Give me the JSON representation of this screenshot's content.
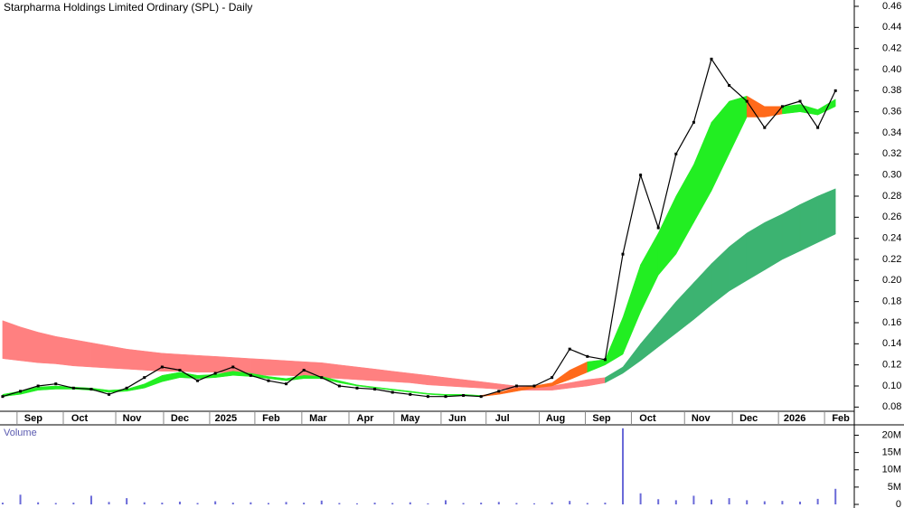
{
  "chart_data": [
    {
      "type": "line",
      "title": "Starpharma Holdings Limited Ordinary (SPL) - Daily",
      "xlim": [
        -0.15,
        48.06
      ],
      "xticks": [
        {
          "value": 1.73,
          "label": "Sep"
        },
        {
          "value": 4.34,
          "label": "Oct"
        },
        {
          "value": 7.3,
          "label": "Nov"
        },
        {
          "value": 10.0,
          "label": "Dec"
        },
        {
          "value": 12.6,
          "label": "2025"
        },
        {
          "value": 15.15,
          "label": "Feb"
        },
        {
          "value": 17.8,
          "label": "Mar"
        },
        {
          "value": 20.46,
          "label": "Apr"
        },
        {
          "value": 23.0,
          "label": "May"
        },
        {
          "value": 25.66,
          "label": "Jun"
        },
        {
          "value": 28.2,
          "label": "Jul"
        },
        {
          "value": 31.2,
          "label": "Aug"
        },
        {
          "value": 33.8,
          "label": "Sep"
        },
        {
          "value": 36.4,
          "label": "Oct"
        },
        {
          "value": 39.4,
          "label": "Nov"
        },
        {
          "value": 42.1,
          "label": "Dec"
        },
        {
          "value": 44.7,
          "label": "2026"
        },
        {
          "value": 47.3,
          "label": "Feb"
        }
      ],
      "ylim": [
        0.076,
        0.466
      ],
      "yticks": [
        0.08,
        {
          "value": 0.1,
          "label": "0.10"
        },
        0.12,
        0.14,
        0.16,
        0.18,
        {
          "value": 0.2,
          "label": "0.20"
        },
        0.22,
        0.24,
        0.26,
        0.28,
        {
          "value": 0.3,
          "label": "0.30"
        },
        0.32,
        0.34,
        0.36,
        0.38,
        {
          "value": 0.4,
          "label": "0.40"
        },
        0.42,
        0.44,
        0.46
      ],
      "ribbons": [
        {
          "color": "#ff8080",
          "x": [
            0,
            1,
            2,
            3,
            4,
            5,
            6,
            7,
            8,
            9,
            10,
            11,
            12,
            13,
            14,
            15,
            16,
            17,
            18,
            19,
            20,
            21,
            22,
            23,
            24,
            25,
            26,
            27,
            28,
            29,
            30,
            31,
            32,
            33,
            34
          ],
          "upper": [
            0.162,
            0.156,
            0.151,
            0.147,
            0.144,
            0.141,
            0.138,
            0.135,
            0.133,
            0.131,
            0.13,
            0.129,
            0.128,
            0.127,
            0.126,
            0.125,
            0.124,
            0.123,
            0.122,
            0.12,
            0.118,
            0.116,
            0.114,
            0.112,
            0.11,
            0.108,
            0.106,
            0.104,
            0.102,
            0.1,
            0.099,
            0.1,
            0.103,
            0.106,
            0.108
          ],
          "lower": [
            0.126,
            0.124,
            0.122,
            0.121,
            0.119,
            0.118,
            0.117,
            0.116,
            0.115,
            0.114,
            0.114,
            0.113,
            0.113,
            0.112,
            0.111,
            0.11,
            0.11,
            0.109,
            0.108,
            0.107,
            0.106,
            0.105,
            0.104,
            0.103,
            0.101,
            0.1,
            0.099,
            0.098,
            0.097,
            0.096,
            0.096,
            0.096,
            0.098,
            0.1,
            0.103
          ]
        },
        {
          "color": "#3cb371",
          "x": [
            34,
            35,
            36,
            37,
            38,
            39,
            40,
            41,
            42,
            43,
            44,
            45,
            46,
            47
          ],
          "upper": [
            0.108,
            0.118,
            0.14,
            0.16,
            0.18,
            0.198,
            0.216,
            0.232,
            0.245,
            0.255,
            0.263,
            0.272,
            0.28,
            0.287
          ],
          "lower": [
            0.103,
            0.112,
            0.124,
            0.137,
            0.15,
            0.163,
            0.177,
            0.19,
            0.2,
            0.21,
            0.22,
            0.228,
            0.236,
            0.244
          ]
        },
        {
          "color": "#22ee22",
          "x": [
            0,
            1,
            2,
            3,
            4,
            5,
            6,
            7,
            8,
            9,
            10,
            11,
            12,
            13,
            14,
            15,
            16,
            17,
            18,
            19,
            20,
            21,
            22,
            23,
            24,
            25,
            26,
            27
          ],
          "upper": [
            0.092,
            0.095,
            0.099,
            0.1,
            0.099,
            0.098,
            0.096,
            0.097,
            0.102,
            0.11,
            0.113,
            0.11,
            0.111,
            0.114,
            0.112,
            0.109,
            0.107,
            0.11,
            0.109,
            0.105,
            0.101,
            0.099,
            0.097,
            0.095,
            0.093,
            0.092,
            0.092,
            0.091
          ],
          "lower": [
            0.09,
            0.092,
            0.096,
            0.097,
            0.097,
            0.096,
            0.094,
            0.095,
            0.098,
            0.104,
            0.108,
            0.107,
            0.108,
            0.11,
            0.109,
            0.107,
            0.105,
            0.107,
            0.107,
            0.103,
            0.1,
            0.098,
            0.096,
            0.094,
            0.092,
            0.091,
            0.091,
            0.09
          ]
        },
        {
          "color": "#ff6a1a",
          "x": [
            27,
            28,
            29,
            30,
            31,
            32,
            33
          ],
          "upper": [
            0.091,
            0.094,
            0.098,
            0.1,
            0.103,
            0.115,
            0.123
          ],
          "lower": [
            0.09,
            0.092,
            0.095,
            0.098,
            0.1,
            0.106,
            0.113
          ]
        },
        {
          "color": "#22ee22",
          "x": [
            33,
            34,
            35,
            36,
            37,
            38,
            39,
            40,
            41,
            42
          ],
          "upper": [
            0.123,
            0.125,
            0.165,
            0.215,
            0.245,
            0.28,
            0.31,
            0.35,
            0.37,
            0.375
          ],
          "lower": [
            0.113,
            0.12,
            0.13,
            0.17,
            0.205,
            0.225,
            0.255,
            0.285,
            0.32,
            0.355
          ]
        },
        {
          "color": "#ff6a1a",
          "x": [
            42,
            43,
            44
          ],
          "upper": [
            0.375,
            0.365,
            0.365
          ],
          "lower": [
            0.355,
            0.355,
            0.358
          ]
        },
        {
          "color": "#22ee22",
          "x": [
            44,
            45,
            46,
            47
          ],
          "upper": [
            0.365,
            0.367,
            0.362,
            0.372
          ],
          "lower": [
            0.358,
            0.36,
            0.357,
            0.365
          ]
        }
      ],
      "series": [
        {
          "color": "#000000",
          "values": [
            0.09,
            0.095,
            0.1,
            0.102,
            0.098,
            0.097,
            0.092,
            0.098,
            0.108,
            0.118,
            0.115,
            0.105,
            0.112,
            0.118,
            0.11,
            0.105,
            0.102,
            0.115,
            0.108,
            0.1,
            0.098,
            0.097,
            0.094,
            0.092,
            0.09,
            0.09,
            0.091,
            0.09,
            0.095,
            0.1,
            0.1,
            0.108,
            0.135,
            0.128,
            0.125,
            0.225,
            0.3,
            0.25,
            0.32,
            0.35,
            0.41,
            0.385,
            0.37,
            0.345,
            0.365,
            0.37,
            0.345,
            0.38
          ]
        }
      ]
    },
    {
      "type": "bar",
      "title": "Volume",
      "xlim": [
        -0.15,
        48.06
      ],
      "ylim": [
        0,
        23000000
      ],
      "yticks": [
        0,
        {
          "value": 5000000,
          "label": "5M"
        },
        {
          "value": 10000000,
          "label": "10M"
        },
        {
          "value": 15000000,
          "label": "15M"
        },
        {
          "value": 20000000,
          "label": "20M"
        }
      ],
      "color": "#6a6ad8",
      "values": [
        500000,
        2800000,
        600000,
        400000,
        500000,
        2500000,
        700000,
        1800000,
        600000,
        500000,
        800000,
        400000,
        900000,
        500000,
        600000,
        400000,
        700000,
        500000,
        1100000,
        400000,
        300000,
        500000,
        400000,
        600000,
        300000,
        1200000,
        400000,
        500000,
        700000,
        400000,
        300000,
        600000,
        1000000,
        400000,
        500000,
        22000000,
        3200000,
        1500000,
        1200000,
        2500000,
        1400000,
        1800000,
        1200000,
        900000,
        1000000,
        800000,
        1600000,
        4500000
      ]
    }
  ]
}
